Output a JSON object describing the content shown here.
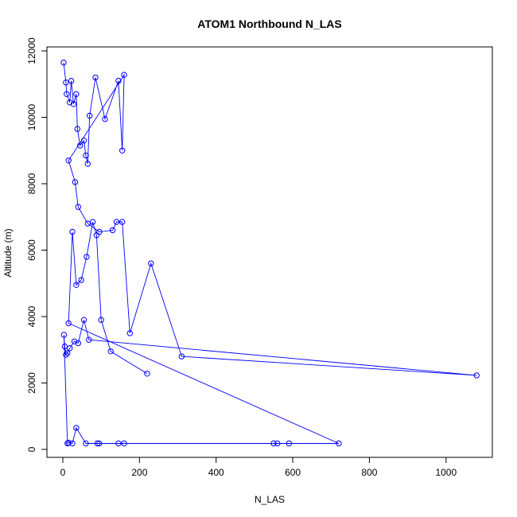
{
  "chart_data": {
    "type": "line",
    "title": "ATOM1 Northbound N_LAS",
    "xlabel": "N_LAS",
    "ylabel": "Altitude (m)",
    "xlim": [
      0,
      1100
    ],
    "ylim": [
      0,
      12000
    ],
    "x_ticks": [
      0,
      200,
      400,
      600,
      800,
      1000
    ],
    "y_ticks": [
      0,
      2000,
      4000,
      6000,
      8000,
      10000,
      12000
    ],
    "grid": false,
    "colors": {
      "series": "#0000ff",
      "axis": "#000000",
      "background": "#ffffff"
    },
    "series": [
      {
        "marker": "open-circle",
        "x": [
          2,
          8,
          10,
          18,
          22,
          28,
          35,
          38,
          45,
          55,
          60,
          65,
          70,
          85,
          110,
          145,
          155,
          160,
          15,
          32,
          40,
          65,
          95,
          130,
          140,
          155,
          175,
          230,
          310,
          1080,
          68,
          55,
          40,
          30,
          18,
          12,
          8,
          5,
          3,
          12,
          15,
          25,
          35,
          60,
          90,
          95,
          145,
          160,
          550,
          560,
          590,
          720,
          15,
          25,
          35,
          48,
          62,
          78,
          88,
          100,
          125,
          220
        ],
        "y": [
          11650,
          11050,
          10700,
          10450,
          11100,
          10400,
          10700,
          9650,
          9150,
          9300,
          8850,
          8600,
          10050,
          11200,
          9950,
          11100,
          9000,
          11280,
          8700,
          8050,
          7300,
          6800,
          6550,
          6600,
          6850,
          6850,
          3500,
          5600,
          2800,
          2230,
          3300,
          3900,
          3200,
          3250,
          3050,
          2900,
          2850,
          3100,
          3450,
          180,
          200,
          180,
          650,
          180,
          180,
          180,
          180,
          180,
          180,
          180,
          180,
          180,
          3800,
          6550,
          4950,
          5100,
          5800,
          6850,
          6450,
          3900,
          2950,
          2280
        ]
      }
    ]
  }
}
